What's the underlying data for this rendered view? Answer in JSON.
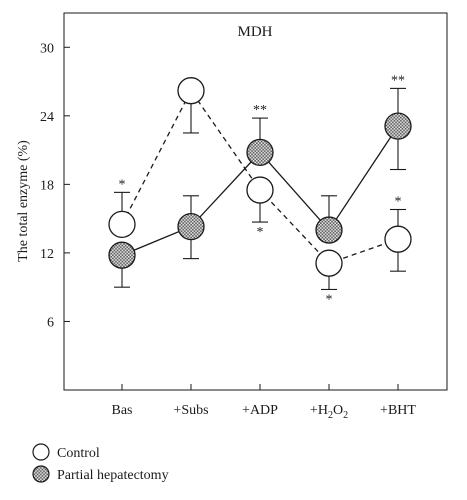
{
  "chart_data": {
    "type": "line",
    "title": "MDH",
    "ylabel": "The total enzyme (%)",
    "xlabel": "",
    "ylim": [
      0,
      33
    ],
    "yticks": [
      6,
      12,
      18,
      24,
      30
    ],
    "categories": [
      {
        "base": "Bas",
        "sub": ""
      },
      {
        "base": "+Subs",
        "sub": ""
      },
      {
        "base": "+ADP",
        "sub": ""
      },
      {
        "base": "+H",
        "sub": "2",
        "base2": "O",
        "sub2": "2"
      },
      {
        "base": "+BHT",
        "sub": ""
      }
    ],
    "series": [
      {
        "name": "Control",
        "marker": "open-circle",
        "line_style": "dashed",
        "values": [
          14.5,
          26.2,
          17.5,
          11.1,
          13.2
        ],
        "err_plus": [
          2.8,
          0,
          0,
          0,
          2.6
        ],
        "err_minus": [
          0,
          3.7,
          2.8,
          2.3,
          2.8
        ],
        "annotations": [
          {
            "index": 0,
            "text": "*",
            "position": "above"
          },
          {
            "index": 2,
            "text": "*",
            "position": "below"
          },
          {
            "index": 3,
            "text": "*",
            "position": "below"
          },
          {
            "index": 4,
            "text": "*",
            "position": "above"
          }
        ]
      },
      {
        "name": "Partial hepatectomy",
        "marker": "hatched-circle",
        "line_style": "solid",
        "values": [
          11.8,
          14.3,
          20.8,
          14.0,
          23.1
        ],
        "err_plus": [
          0,
          2.7,
          3.0,
          3.0,
          3.3
        ],
        "err_minus": [
          2.8,
          2.8,
          0,
          0,
          3.8
        ],
        "annotations": [
          {
            "index": 2,
            "text": "**",
            "position": "above"
          },
          {
            "index": 4,
            "text": "**",
            "position": "above"
          }
        ]
      }
    ],
    "grid": false,
    "legend": "bottom-left"
  }
}
